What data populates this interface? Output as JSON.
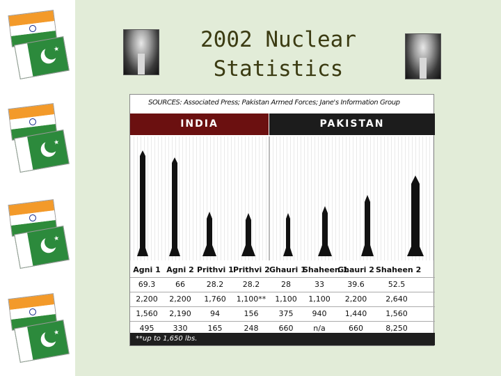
{
  "slide": {
    "title_line1": "2002 Nuclear",
    "title_line2": "Statistics"
  },
  "graphic": {
    "sources": "SOURCES: Associated Press; Pakistan Armed Forces; Jane's Information Group",
    "india_label": "INDIA",
    "pakistan_label": "PAKISTAN",
    "columns": [
      "Agni 1",
      "Agni 2",
      "Prithvi 1",
      "Prithvi 2",
      "Ghauri 1",
      "Shaheen 1",
      "Ghauri 2",
      "Shaheen 2"
    ],
    "rows": [
      [
        "69.3",
        "66",
        "28.2",
        "28.2",
        "28",
        "33",
        "39.6",
        "52.5"
      ],
      [
        "2,200",
        "2,200",
        "1,760",
        "1,100**",
        "1,100",
        "1,100",
        "2,200",
        "2,640"
      ],
      [
        "1,560",
        "2,190",
        "94",
        "156",
        "375",
        "940",
        "1,440",
        "1,560"
      ],
      [
        "495",
        "330",
        "165",
        "248",
        "660",
        "n/a",
        "660",
        "8,250"
      ]
    ],
    "footnote": "**up to 1,650 lbs."
  },
  "colors": {
    "india_banner": "#6b1010",
    "pakistan_banner": "#1c1c1c",
    "title_text": "#3b3b12",
    "background": "#e2ecd8"
  },
  "icons": [
    "india-flag-icon",
    "pakistan-flag-icon",
    "mushroom-cloud-icon"
  ]
}
